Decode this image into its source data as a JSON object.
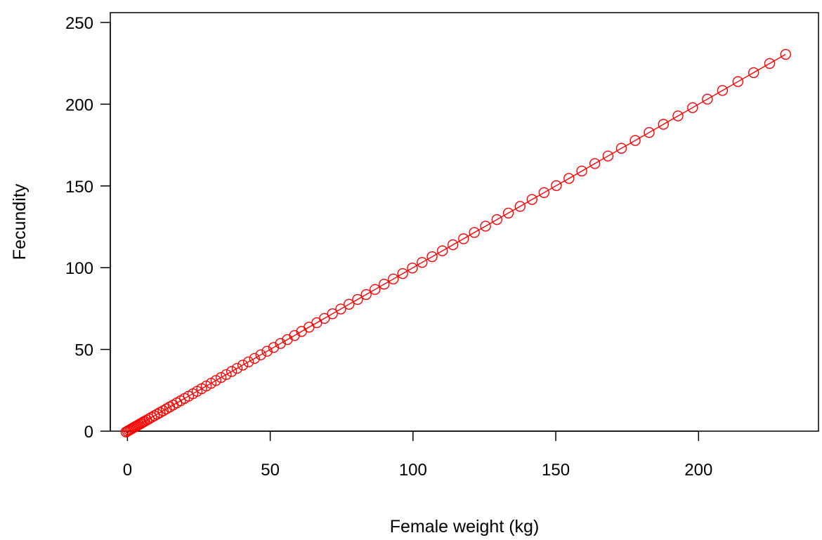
{
  "chart_data": {
    "type": "line",
    "title": "",
    "xlabel": "Female weight (kg)",
    "ylabel": "Fecundity",
    "xlim": [
      -6,
      242
    ],
    "ylim": [
      0,
      256
    ],
    "xticks": [
      0,
      50,
      100,
      150,
      200
    ],
    "yticks": [
      0,
      50,
      100,
      150,
      200,
      250
    ],
    "grid": false,
    "legend": "none",
    "markers": "open-circle",
    "series_color": "#ff0000",
    "series": [
      {
        "x": [
          -0.5,
          0,
          0.5,
          1,
          1.5,
          2,
          2.5,
          3,
          3.5,
          4,
          4.5,
          5,
          5.5,
          6,
          6.8,
          7.6,
          8.5,
          9.4,
          10.4,
          11.4,
          12.5,
          13.6,
          14.8,
          16,
          17.3,
          18.6,
          20,
          21.4,
          22.9,
          24.4,
          26,
          27.6,
          29.3,
          31,
          32.8,
          34.6,
          36.5,
          38.4,
          40.4,
          42.4,
          44.5,
          46.7,
          48.9,
          51.2,
          53.6,
          56,
          58.5,
          61,
          63.6,
          66.3,
          69,
          71.8,
          74.7,
          77.6,
          80.6,
          83.6,
          86.7,
          89.9,
          93.1,
          96.4,
          99.8,
          103.2,
          106.7,
          110.3,
          114,
          117.7,
          121.5,
          125.4,
          129.4,
          133.4,
          137.5,
          141.7,
          145.9,
          150.2,
          154.6,
          159.1,
          163.7,
          168.3,
          173,
          177.8,
          182.7,
          187.7,
          192.8,
          197.9,
          203.1,
          208.4,
          213.8,
          219.3,
          224.9,
          230.5
        ],
        "y": [
          -0.5,
          0,
          0.5,
          1,
          1.5,
          2,
          2.5,
          3,
          3.5,
          4,
          4.5,
          5,
          5.5,
          6,
          6.8,
          7.6,
          8.5,
          9.4,
          10.4,
          11.4,
          12.5,
          13.6,
          14.8,
          16,
          17.3,
          18.6,
          20,
          21.4,
          22.9,
          24.4,
          26,
          27.6,
          29.3,
          31,
          32.8,
          34.6,
          36.5,
          38.4,
          40.4,
          42.4,
          44.5,
          46.7,
          48.9,
          51.2,
          53.6,
          56,
          58.5,
          61,
          63.6,
          66.3,
          69,
          71.8,
          74.7,
          77.6,
          80.6,
          83.6,
          86.7,
          89.9,
          93.1,
          96.4,
          99.8,
          103.2,
          106.7,
          110.3,
          114,
          117.7,
          121.5,
          125.4,
          129.4,
          133.4,
          137.5,
          141.7,
          145.9,
          150.2,
          154.6,
          159.1,
          163.7,
          168.3,
          173,
          177.8,
          182.7,
          187.7,
          192.8,
          197.9,
          203.1,
          208.4,
          213.8,
          219.3,
          224.9,
          230.5
        ]
      }
    ]
  }
}
